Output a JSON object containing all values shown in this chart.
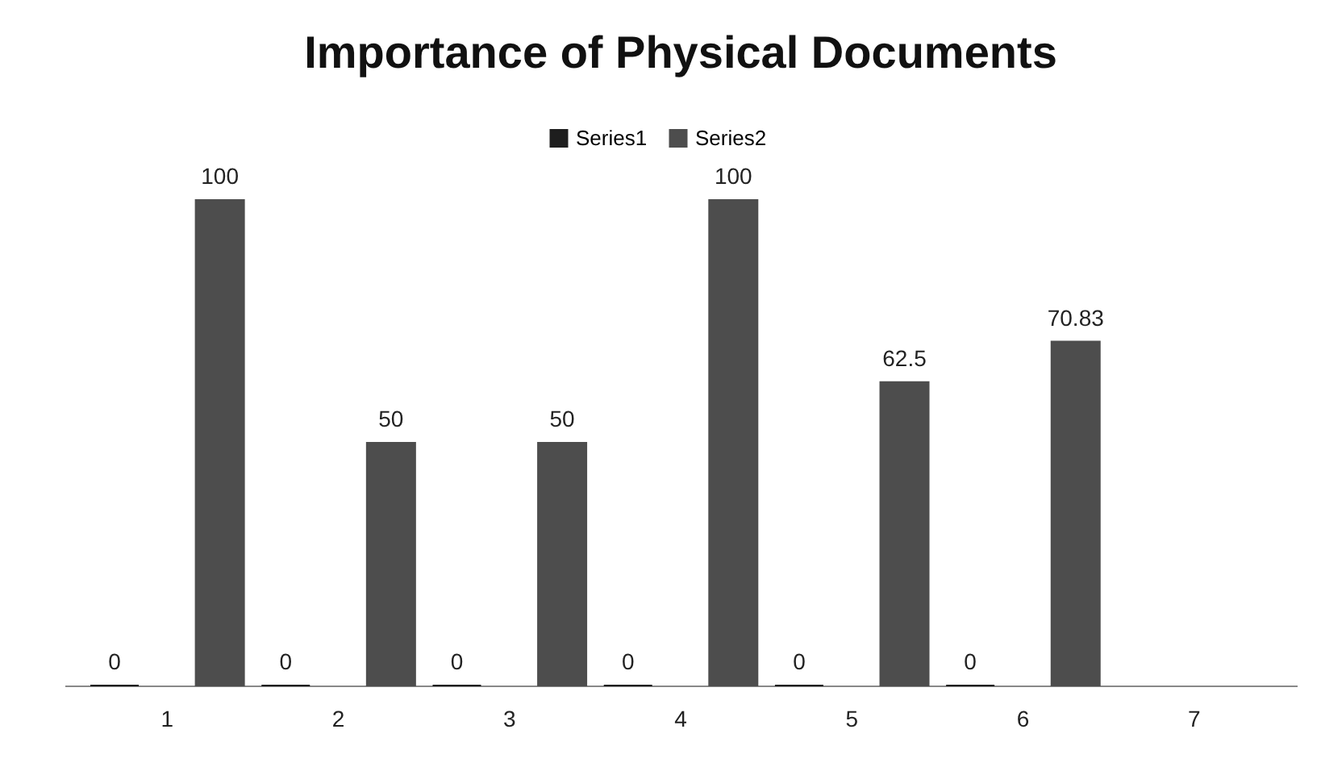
{
  "chart_data": {
    "type": "bar",
    "title": "Importance of Physical Documents",
    "categories": [
      "1",
      "2",
      "3",
      "4",
      "5",
      "6",
      "7"
    ],
    "series": [
      {
        "name": "Series1",
        "color": "#1e1e1e",
        "values": [
          0,
          0,
          0,
          0,
          0,
          0,
          null
        ]
      },
      {
        "name": "Series2",
        "color": "#4d4d4d",
        "values": [
          100,
          50,
          50,
          100,
          62.5,
          70.83,
          null
        ]
      }
    ],
    "data_labels": true,
    "legend": "top",
    "grid": false
  }
}
